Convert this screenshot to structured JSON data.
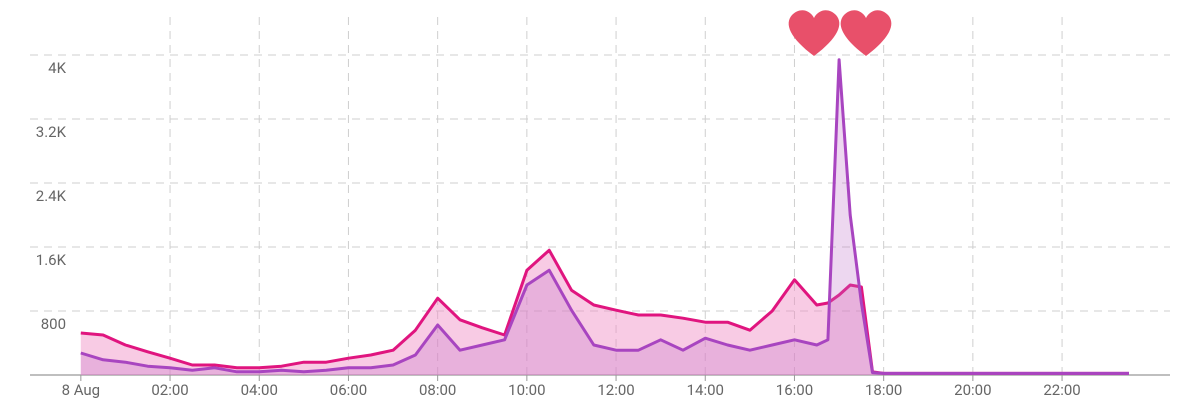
{
  "chart_data": {
    "type": "area",
    "x": [
      0,
      0.5,
      1,
      1.5,
      2,
      2.5,
      3,
      3.5,
      4,
      4.5,
      5,
      5.5,
      6,
      6.5,
      7,
      7.5,
      8,
      8.5,
      9,
      9.5,
      10,
      10.5,
      11,
      11.5,
      12,
      12.5,
      13,
      13.5,
      14,
      14.5,
      15,
      15.5,
      16,
      16.5,
      16.75,
      17,
      17.25,
      17.5,
      17.75,
      18,
      19,
      20,
      21,
      22,
      23,
      23.5
    ],
    "series": [
      {
        "color": "#e0157f",
        "fill": "rgba(240,140,195,0.45)",
        "values": [
          525,
          500,
          375,
          290,
          210,
          125,
          125,
          90,
          90,
          110,
          160,
          160,
          210,
          250,
          310,
          560,
          960,
          690,
          590,
          500,
          1310,
          1560,
          1060,
          875,
          810,
          750,
          750,
          710,
          660,
          660,
          560,
          800,
          1190,
          875,
          900,
          1000,
          1125,
          1100,
          40,
          20,
          20,
          20,
          20,
          20,
          20,
          20
        ]
      },
      {
        "color": "#a845c0",
        "fill": "rgba(190,110,200,0.28)",
        "values": [
          275,
          190,
          160,
          110,
          90,
          60,
          90,
          40,
          40,
          60,
          40,
          60,
          90,
          90,
          125,
          250,
          625,
          310,
          375,
          440,
          1125,
          1310,
          810,
          375,
          310,
          310,
          440,
          310,
          460,
          375,
          310,
          375,
          440,
          375,
          440,
          3940,
          2000,
          900,
          30,
          20,
          20,
          20,
          20,
          20,
          20,
          20
        ]
      }
    ],
    "xlim": [
      -1.14,
      24.42
    ],
    "xticks": [
      {
        "value": 0,
        "label": "8 Aug"
      },
      {
        "value": 2,
        "label": "02:00"
      },
      {
        "value": 4,
        "label": "04:00"
      },
      {
        "value": 6,
        "label": "06:00"
      },
      {
        "value": 8,
        "label": "08:00"
      },
      {
        "value": 10,
        "label": "10:00"
      },
      {
        "value": 12,
        "label": "12:00"
      },
      {
        "value": 14,
        "label": "14:00"
      },
      {
        "value": 16,
        "label": "16:00"
      },
      {
        "value": 18,
        "label": "18:00"
      },
      {
        "value": 20,
        "label": "20:00"
      },
      {
        "value": 22,
        "label": "22:00"
      }
    ],
    "ylim": [
      0,
      4600
    ],
    "yticks": [
      800,
      {
        "value": 1600,
        "label": "1.6K"
      },
      {
        "value": 2400,
        "label": "2.4K"
      },
      {
        "value": 3200,
        "label": "3.2K"
      },
      {
        "value": 4000,
        "label": "4K"
      }
    ],
    "grid": true
  }
}
